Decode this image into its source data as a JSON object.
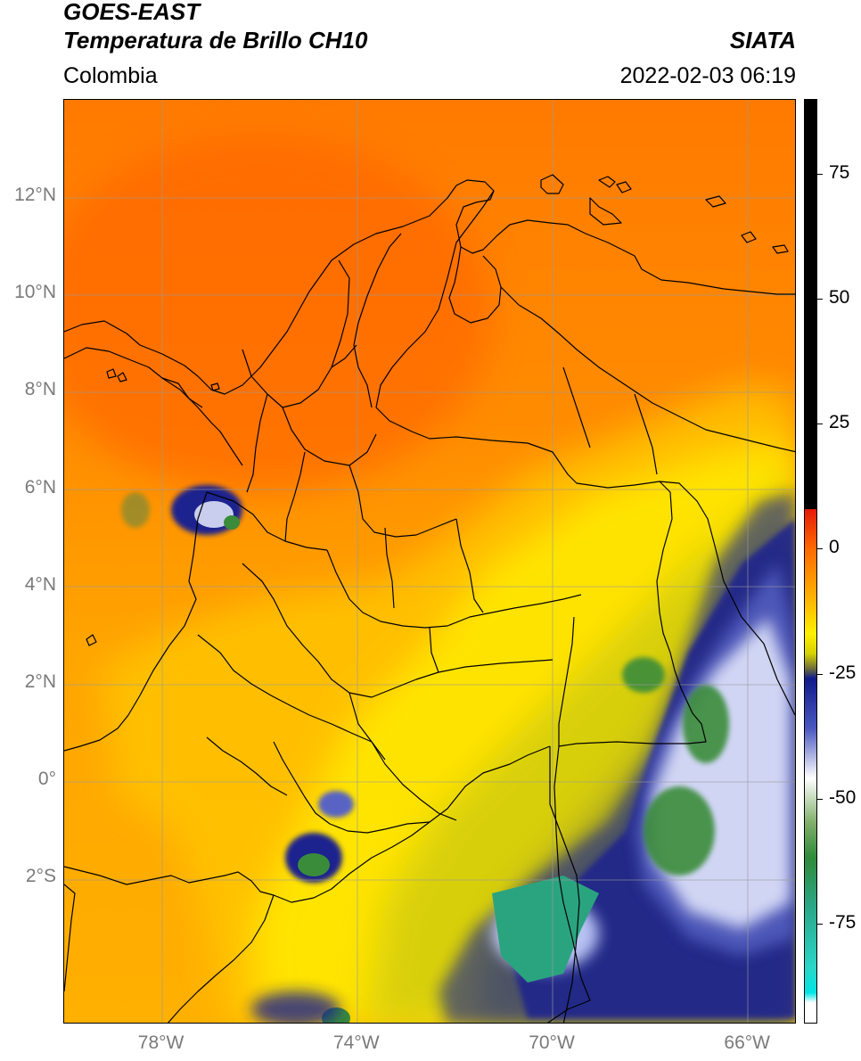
{
  "header": {
    "satellite": "GOES-EAST",
    "product": "Temperatura de Brillo CH10",
    "region": "Colombia",
    "source": "SIATA",
    "datetime": "2022-02-03 06:19"
  },
  "map": {
    "lat_ticks": [
      {
        "value": 12,
        "label": "12°N"
      },
      {
        "value": 10,
        "label": "10°N"
      },
      {
        "value": 8,
        "label": "8°N"
      },
      {
        "value": 6,
        "label": "6°N"
      },
      {
        "value": 4,
        "label": "4°N"
      },
      {
        "value": 2,
        "label": "2°N"
      },
      {
        "value": 0,
        "label": "0°"
      },
      {
        "value": -2,
        "label": "2°S"
      }
    ],
    "lon_ticks": [
      {
        "value": -78,
        "label": "78°W"
      },
      {
        "value": -74,
        "label": "74°W"
      },
      {
        "value": -70,
        "label": "70°W"
      },
      {
        "value": -66,
        "label": "66°W"
      }
    ],
    "lat_range": [
      -5,
      14
    ],
    "lon_range": [
      -80,
      -65
    ]
  },
  "colorbar": {
    "range": [
      -95,
      90
    ],
    "ticks": [
      {
        "value": 75,
        "label": "75"
      },
      {
        "value": 50,
        "label": "50"
      },
      {
        "value": 25,
        "label": "25"
      },
      {
        "value": 0,
        "label": "0"
      },
      {
        "value": -25,
        "label": "-25"
      },
      {
        "value": -50,
        "label": "-50"
      },
      {
        "value": -75,
        "label": "-75"
      }
    ],
    "stops": [
      {
        "value": 90,
        "color": "#000000"
      },
      {
        "value": 8,
        "color": "#000000"
      },
      {
        "value": 7.9,
        "color": "#e51a0a"
      },
      {
        "value": 0,
        "color": "#ff6a00"
      },
      {
        "value": -10,
        "color": "#ffb300"
      },
      {
        "value": -17,
        "color": "#fff000"
      },
      {
        "value": -21,
        "color": "#d6d200"
      },
      {
        "value": -24,
        "color": "#6f6f3a"
      },
      {
        "value": -26,
        "color": "#101a8c"
      },
      {
        "value": -36,
        "color": "#4a58c0"
      },
      {
        "value": -46,
        "color": "#ffffff"
      },
      {
        "value": -55,
        "color": "#7fae6a"
      },
      {
        "value": -62,
        "color": "#2e8b3a"
      },
      {
        "value": -72,
        "color": "#2aa88a"
      },
      {
        "value": -84,
        "color": "#2ad6c8"
      },
      {
        "value": -89,
        "color": "#00e5e5"
      },
      {
        "value": -91,
        "color": "#ffffff"
      },
      {
        "value": -95,
        "color": "#ffffff"
      }
    ]
  }
}
